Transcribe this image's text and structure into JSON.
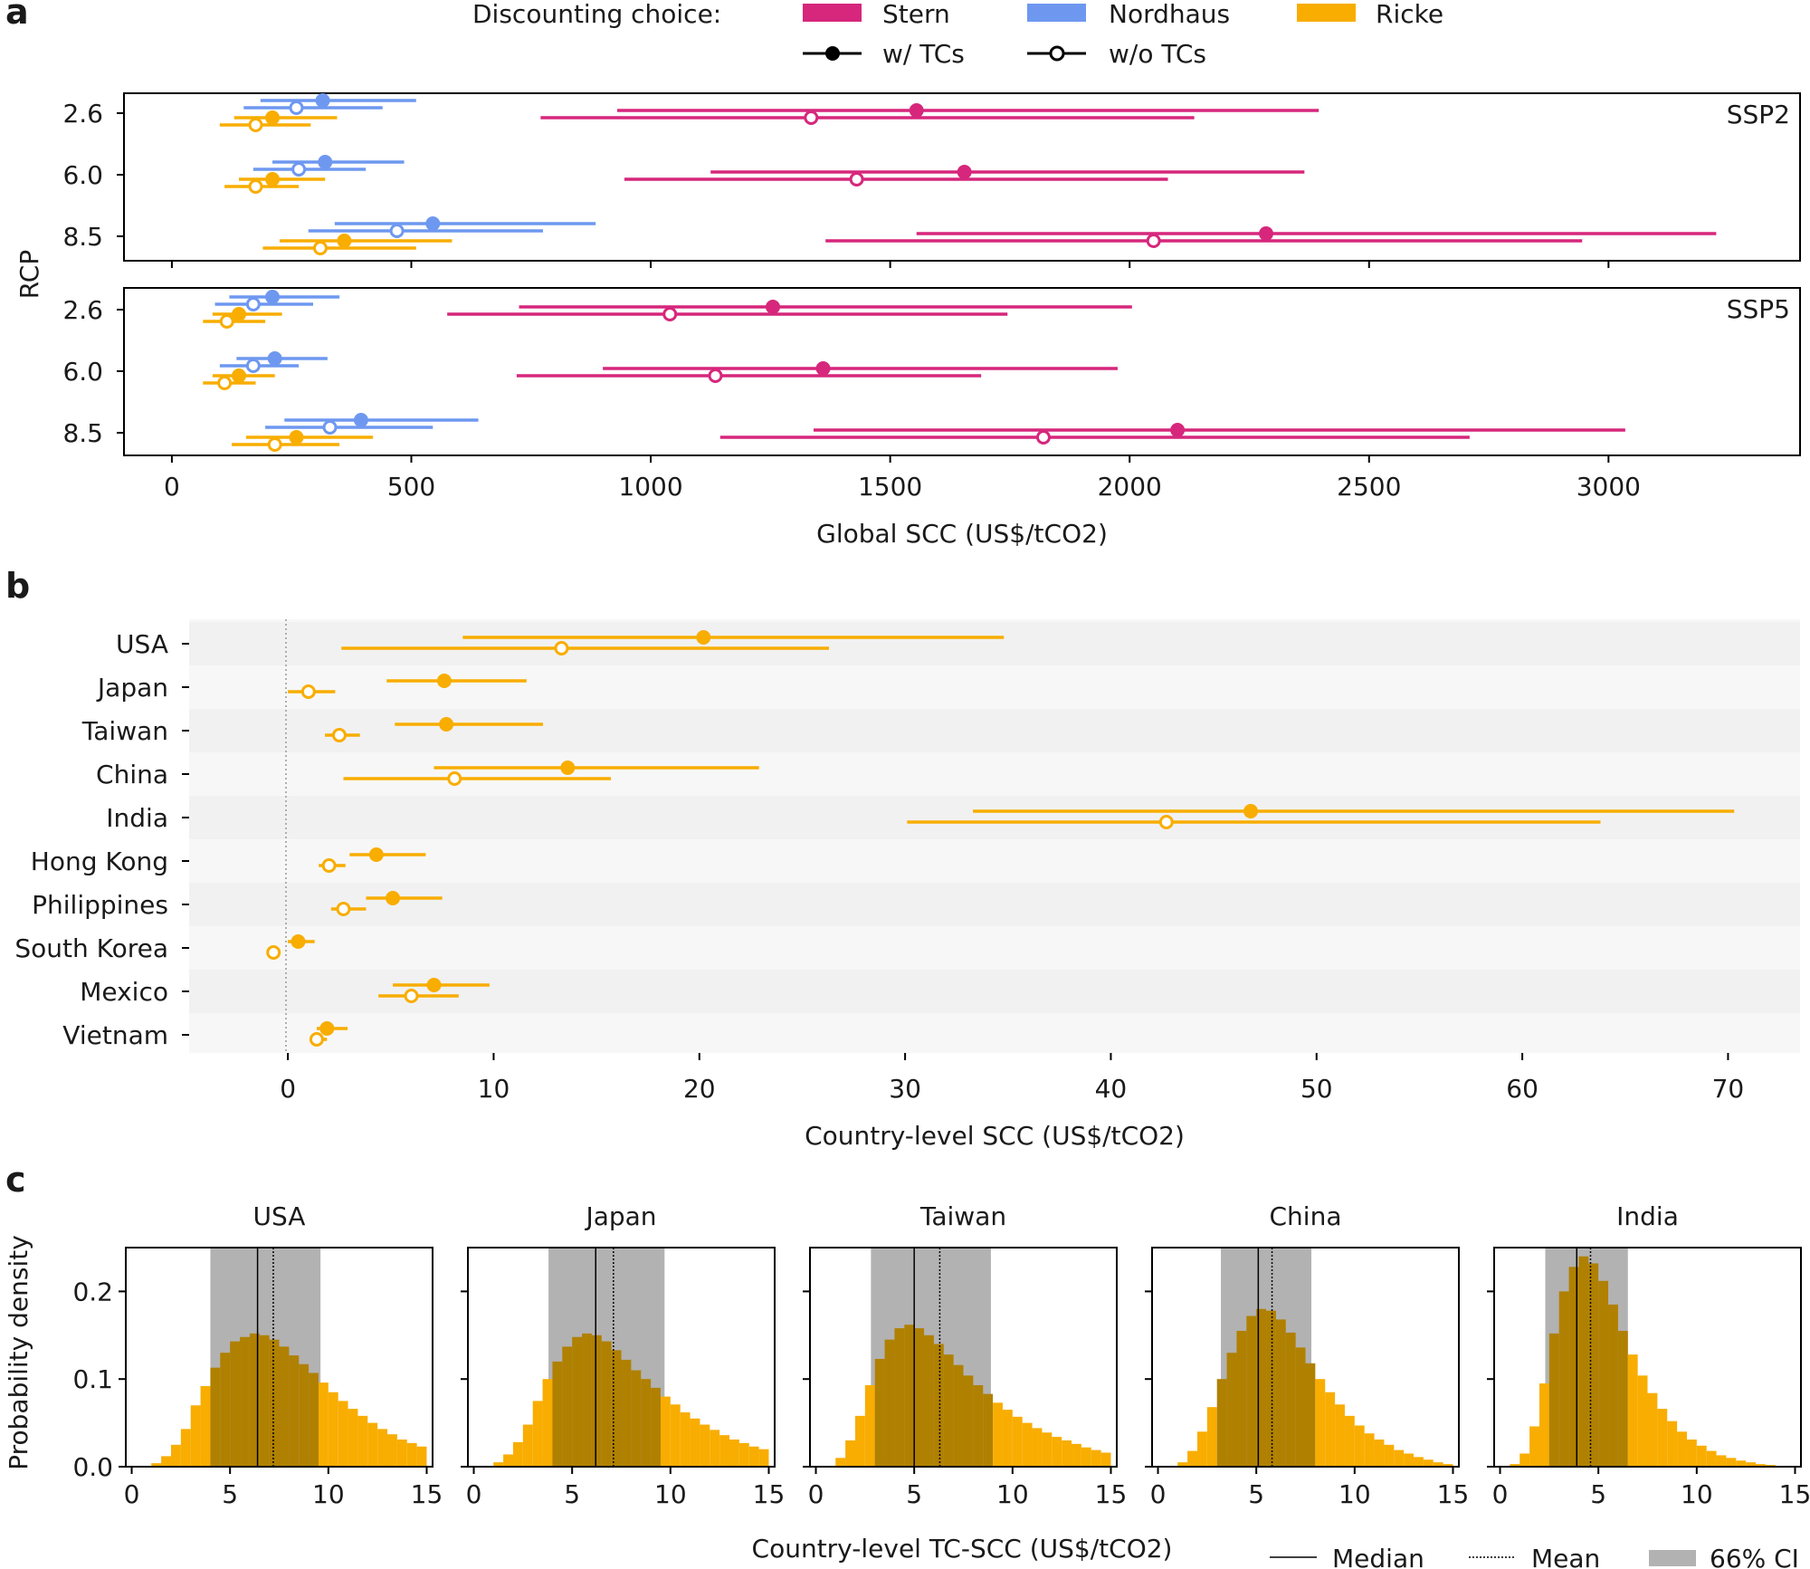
{
  "chart_data": [
    {
      "panel": "a",
      "type": "errorbar",
      "panel_label": "a",
      "xlabel": "Global SCC (US$/tCO2)",
      "ylabel": "RCP",
      "xlim": [
        -100,
        3400
      ],
      "xticks": [
        0,
        500,
        1000,
        1500,
        2000,
        2500,
        3000
      ],
      "legend": {
        "title": "Discounting choice:",
        "discounting": [
          {
            "name": "Stern",
            "color": "#d6277c"
          },
          {
            "name": "Nordhaus",
            "color": "#6e98f0"
          },
          {
            "name": "Ricke",
            "color": "#f8ad00"
          }
        ],
        "markers": [
          {
            "name": "w/ TCs",
            "filled": true
          },
          {
            "name": "w/o TCs",
            "filled": false
          }
        ]
      },
      "subplots": [
        {
          "label": "SSP2",
          "rcp_ticks": [
            "2.6",
            "6.0",
            "8.5"
          ],
          "series": [
            {
              "discounting": "Nordhaus",
              "rcp": "2.6",
              "tc": true,
              "median": 315,
              "low": 185,
              "high": 510
            },
            {
              "discounting": "Nordhaus",
              "rcp": "2.6",
              "tc": false,
              "median": 260,
              "low": 150,
              "high": 440
            },
            {
              "discounting": "Ricke",
              "rcp": "2.6",
              "tc": true,
              "median": 210,
              "low": 130,
              "high": 345
            },
            {
              "discounting": "Ricke",
              "rcp": "2.6",
              "tc": false,
              "median": 175,
              "low": 100,
              "high": 290
            },
            {
              "discounting": "Stern",
              "rcp": "2.6",
              "tc": true,
              "median": 1555,
              "low": 930,
              "high": 2395
            },
            {
              "discounting": "Stern",
              "rcp": "2.6",
              "tc": false,
              "median": 1335,
              "low": 770,
              "high": 2135
            },
            {
              "discounting": "Nordhaus",
              "rcp": "6.0",
              "tc": true,
              "median": 320,
              "low": 210,
              "high": 485
            },
            {
              "discounting": "Nordhaus",
              "rcp": "6.0",
              "tc": false,
              "median": 265,
              "low": 170,
              "high": 405
            },
            {
              "discounting": "Ricke",
              "rcp": "6.0",
              "tc": true,
              "median": 210,
              "low": 140,
              "high": 320
            },
            {
              "discounting": "Ricke",
              "rcp": "6.0",
              "tc": false,
              "median": 175,
              "low": 110,
              "high": 265
            },
            {
              "discounting": "Stern",
              "rcp": "6.0",
              "tc": true,
              "median": 1655,
              "low": 1125,
              "high": 2365
            },
            {
              "discounting": "Stern",
              "rcp": "6.0",
              "tc": false,
              "median": 1430,
              "low": 945,
              "high": 2080
            },
            {
              "discounting": "Nordhaus",
              "rcp": "8.5",
              "tc": true,
              "median": 545,
              "low": 340,
              "high": 885
            },
            {
              "discounting": "Nordhaus",
              "rcp": "8.5",
              "tc": false,
              "median": 470,
              "low": 285,
              "high": 775
            },
            {
              "discounting": "Ricke",
              "rcp": "8.5",
              "tc": true,
              "median": 360,
              "low": 225,
              "high": 585
            },
            {
              "discounting": "Ricke",
              "rcp": "8.5",
              "tc": false,
              "median": 310,
              "low": 190,
              "high": 510
            },
            {
              "discounting": "Stern",
              "rcp": "8.5",
              "tc": true,
              "median": 2285,
              "low": 1555,
              "high": 3225
            },
            {
              "discounting": "Stern",
              "rcp": "8.5",
              "tc": false,
              "median": 2050,
              "low": 1365,
              "high": 2945
            }
          ]
        },
        {
          "label": "SSP5",
          "rcp_ticks": [
            "2.6",
            "6.0",
            "8.5"
          ],
          "series": [
            {
              "discounting": "Nordhaus",
              "rcp": "2.6",
              "tc": true,
              "median": 210,
              "low": 120,
              "high": 350
            },
            {
              "discounting": "Nordhaus",
              "rcp": "2.6",
              "tc": false,
              "median": 170,
              "low": 90,
              "high": 295
            },
            {
              "discounting": "Ricke",
              "rcp": "2.6",
              "tc": true,
              "median": 140,
              "low": 85,
              "high": 230
            },
            {
              "discounting": "Ricke",
              "rcp": "2.6",
              "tc": false,
              "median": 115,
              "low": 65,
              "high": 195
            },
            {
              "discounting": "Stern",
              "rcp": "2.6",
              "tc": true,
              "median": 1255,
              "low": 725,
              "high": 2005
            },
            {
              "discounting": "Stern",
              "rcp": "2.6",
              "tc": false,
              "median": 1040,
              "low": 575,
              "high": 1745
            },
            {
              "discounting": "Nordhaus",
              "rcp": "6.0",
              "tc": true,
              "median": 215,
              "low": 135,
              "high": 325
            },
            {
              "discounting": "Nordhaus",
              "rcp": "6.0",
              "tc": false,
              "median": 170,
              "low": 100,
              "high": 265
            },
            {
              "discounting": "Ricke",
              "rcp": "6.0",
              "tc": true,
              "median": 140,
              "low": 85,
              "high": 215
            },
            {
              "discounting": "Ricke",
              "rcp": "6.0",
              "tc": false,
              "median": 110,
              "low": 65,
              "high": 175
            },
            {
              "discounting": "Stern",
              "rcp": "6.0",
              "tc": true,
              "median": 1360,
              "low": 900,
              "high": 1975
            },
            {
              "discounting": "Stern",
              "rcp": "6.0",
              "tc": false,
              "median": 1135,
              "low": 720,
              "high": 1690
            },
            {
              "discounting": "Nordhaus",
              "rcp": "8.5",
              "tc": true,
              "median": 395,
              "low": 235,
              "high": 640
            },
            {
              "discounting": "Nordhaus",
              "rcp": "8.5",
              "tc": false,
              "median": 330,
              "low": 195,
              "high": 545
            },
            {
              "discounting": "Ricke",
              "rcp": "8.5",
              "tc": true,
              "median": 260,
              "low": 155,
              "high": 420
            },
            {
              "discounting": "Ricke",
              "rcp": "8.5",
              "tc": false,
              "median": 215,
              "low": 125,
              "high": 350
            },
            {
              "discounting": "Stern",
              "rcp": "8.5",
              "tc": true,
              "median": 2100,
              "low": 1340,
              "high": 3035
            },
            {
              "discounting": "Stern",
              "rcp": "8.5",
              "tc": false,
              "median": 1820,
              "low": 1145,
              "high": 2710
            }
          ]
        }
      ]
    },
    {
      "panel": "b",
      "type": "errorbar",
      "panel_label": "b",
      "xlabel": "Country-level SCC (US$/tCO2)",
      "xlim": [
        -4.8,
        73.5
      ],
      "xticks": [
        0,
        10,
        20,
        30,
        40,
        50,
        60,
        70
      ],
      "color": "#f8ad00",
      "countries": [
        {
          "name": "USA",
          "with_tc": {
            "median": 20.2,
            "low": 8.5,
            "high": 34.8
          },
          "without_tc": {
            "median": 13.3,
            "low": 2.6,
            "high": 26.3
          }
        },
        {
          "name": "Japan",
          "with_tc": {
            "median": 7.6,
            "low": 4.8,
            "high": 11.6
          },
          "without_tc": {
            "median": 1.0,
            "low": 0.0,
            "high": 2.3
          }
        },
        {
          "name": "Taiwan",
          "with_tc": {
            "median": 7.7,
            "low": 5.2,
            "high": 12.4
          },
          "without_tc": {
            "median": 2.5,
            "low": 1.8,
            "high": 3.5
          }
        },
        {
          "name": "China",
          "with_tc": {
            "median": 13.6,
            "low": 7.1,
            "high": 22.9
          },
          "without_tc": {
            "median": 8.1,
            "low": 2.7,
            "high": 15.7
          }
        },
        {
          "name": "India",
          "with_tc": {
            "median": 46.8,
            "low": 33.3,
            "high": 70.3
          },
          "without_tc": {
            "median": 42.7,
            "low": 30.1,
            "high": 63.8
          }
        },
        {
          "name": "Hong Kong",
          "with_tc": {
            "median": 4.3,
            "low": 3.0,
            "high": 6.7
          },
          "without_tc": {
            "median": 2.0,
            "low": 1.5,
            "high": 2.8
          }
        },
        {
          "name": "Philippines",
          "with_tc": {
            "median": 5.1,
            "low": 3.8,
            "high": 7.5
          },
          "without_tc": {
            "median": 2.7,
            "low": 2.1,
            "high": 3.8
          }
        },
        {
          "name": "South Korea",
          "with_tc": {
            "median": 0.5,
            "low": 0.0,
            "high": 1.3
          },
          "without_tc": {
            "median": -0.7,
            "low": -0.9,
            "high": -0.5
          }
        },
        {
          "name": "Mexico",
          "with_tc": {
            "median": 7.1,
            "low": 5.1,
            "high": 9.8
          },
          "without_tc": {
            "median": 6.0,
            "low": 4.4,
            "high": 8.3
          }
        },
        {
          "name": "Vietnam",
          "with_tc": {
            "median": 1.9,
            "low": 1.4,
            "high": 2.9
          },
          "without_tc": {
            "median": 1.4,
            "low": 1.2,
            "high": 1.9
          }
        }
      ]
    },
    {
      "panel": "c",
      "type": "histogram",
      "panel_label": "c",
      "xlabel": "Country-level TC-SCC (US$/tCO2)",
      "ylabel": "Probability density",
      "xlim": [
        -0.3,
        15.3
      ],
      "ylim": [
        0,
        0.25
      ],
      "xticks": [
        0,
        5,
        10,
        15
      ],
      "yticks": [
        0.0,
        0.1,
        0.2
      ],
      "ytick_labels": [
        "0.0",
        "0.1",
        "0.2"
      ],
      "bin_start": 0,
      "bin_width": 0.5,
      "color": "#f8ad00",
      "legend": {
        "median": "Median",
        "mean": "Mean",
        "ci": "66% CI"
      },
      "panels": [
        {
          "title": "USA",
          "median": 6.4,
          "mean": 7.2,
          "ci": [
            4.0,
            9.6
          ],
          "density": [
            0,
            0,
            0.004,
            0.012,
            0.025,
            0.043,
            0.07,
            0.092,
            0.113,
            0.13,
            0.143,
            0.148,
            0.152,
            0.15,
            0.145,
            0.137,
            0.127,
            0.117,
            0.107,
            0.096,
            0.085,
            0.075,
            0.066,
            0.058,
            0.05,
            0.043,
            0.037,
            0.031,
            0.027,
            0.023
          ]
        },
        {
          "title": "Japan",
          "median": 6.2,
          "mean": 7.1,
          "ci": [
            3.8,
            9.7
          ],
          "density": [
            0,
            0,
            0.005,
            0.014,
            0.028,
            0.048,
            0.075,
            0.1,
            0.12,
            0.137,
            0.148,
            0.152,
            0.15,
            0.143,
            0.133,
            0.122,
            0.11,
            0.1,
            0.09,
            0.08,
            0.071,
            0.062,
            0.055,
            0.048,
            0.042,
            0.036,
            0.031,
            0.027,
            0.023,
            0.02
          ]
        },
        {
          "title": "Taiwan",
          "median": 5.0,
          "mean": 6.3,
          "ci": [
            2.8,
            8.9
          ],
          "density": [
            0,
            0,
            0.01,
            0.03,
            0.058,
            0.093,
            0.123,
            0.145,
            0.158,
            0.162,
            0.158,
            0.15,
            0.14,
            0.128,
            0.116,
            0.104,
            0.093,
            0.083,
            0.073,
            0.065,
            0.057,
            0.05,
            0.044,
            0.039,
            0.034,
            0.03,
            0.026,
            0.022,
            0.019,
            0.016
          ]
        },
        {
          "title": "China",
          "median": 5.1,
          "mean": 5.8,
          "ci": [
            3.2,
            7.8
          ],
          "density": [
            0,
            0,
            0.005,
            0.018,
            0.04,
            0.068,
            0.1,
            0.13,
            0.155,
            0.172,
            0.18,
            0.178,
            0.168,
            0.153,
            0.136,
            0.118,
            0.1,
            0.085,
            0.071,
            0.058,
            0.047,
            0.038,
            0.031,
            0.025,
            0.019,
            0.015,
            0.011,
            0.008,
            0.005,
            0.003
          ]
        },
        {
          "title": "India",
          "median": 3.9,
          "mean": 4.6,
          "ci": [
            2.3,
            6.5
          ],
          "density": [
            0,
            0.003,
            0.015,
            0.046,
            0.095,
            0.152,
            0.2,
            0.228,
            0.24,
            0.232,
            0.212,
            0.185,
            0.155,
            0.128,
            0.104,
            0.084,
            0.066,
            0.052,
            0.04,
            0.031,
            0.024,
            0.018,
            0.013,
            0.01,
            0.007,
            0.005,
            0.003,
            0.002,
            0.001,
            0.001
          ]
        }
      ]
    }
  ]
}
